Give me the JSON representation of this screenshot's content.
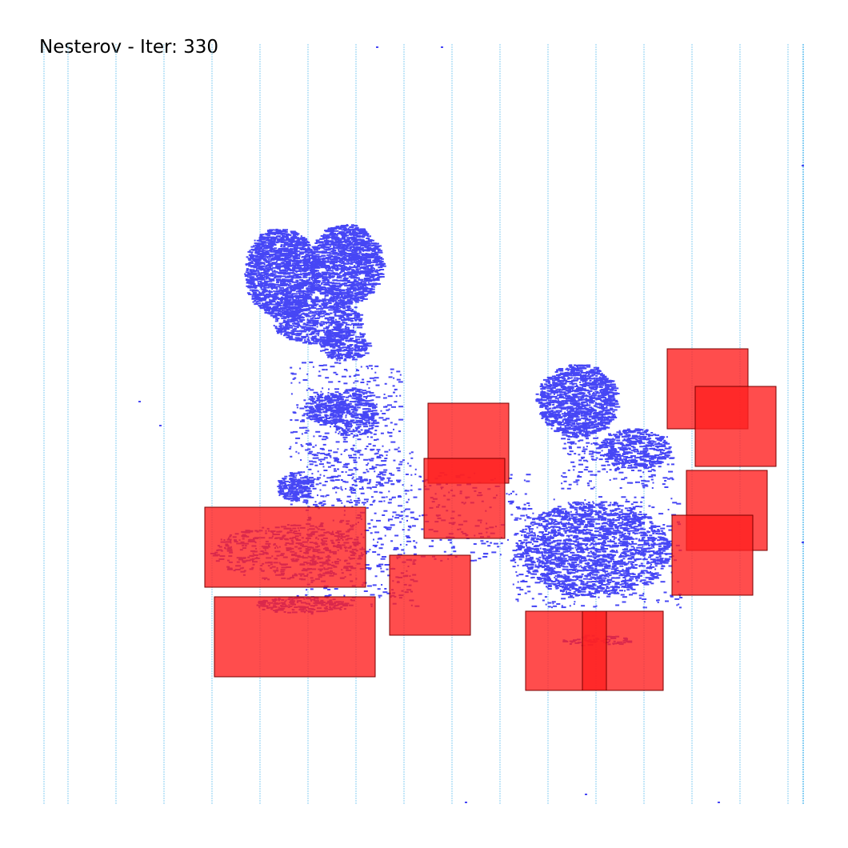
{
  "title": "Nesterov - Iter: 330",
  "colors": {
    "background": "#ffffff",
    "row_lines": "#6ec4f0",
    "cells": "#4747f5",
    "macros": "#ff2020",
    "macro_border": "#7a0000",
    "overlap": "#ff0000"
  }
}
